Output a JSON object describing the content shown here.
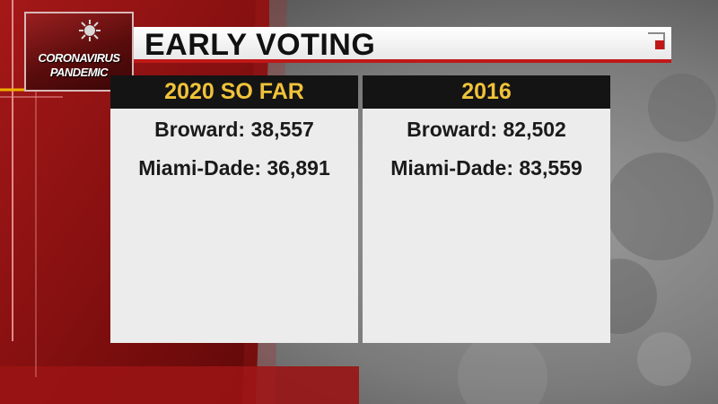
{
  "logo": {
    "line1": "CORONAVIRUS",
    "line2": "PANDEMIC"
  },
  "title": "EARLY VOTING",
  "panels": [
    {
      "header": "2020 SO FAR",
      "rows": [
        "Broward: 38,557",
        "Miami-Dade: 36,891"
      ]
    },
    {
      "header": "2016",
      "rows": [
        "Broward: 82,502",
        "Miami-Dade: 83,559"
      ]
    }
  ],
  "colors": {
    "accent_red": "#c01818",
    "header_gold": "#f0c23a",
    "header_bg": "#141414",
    "panel_bg": "#ececec"
  }
}
